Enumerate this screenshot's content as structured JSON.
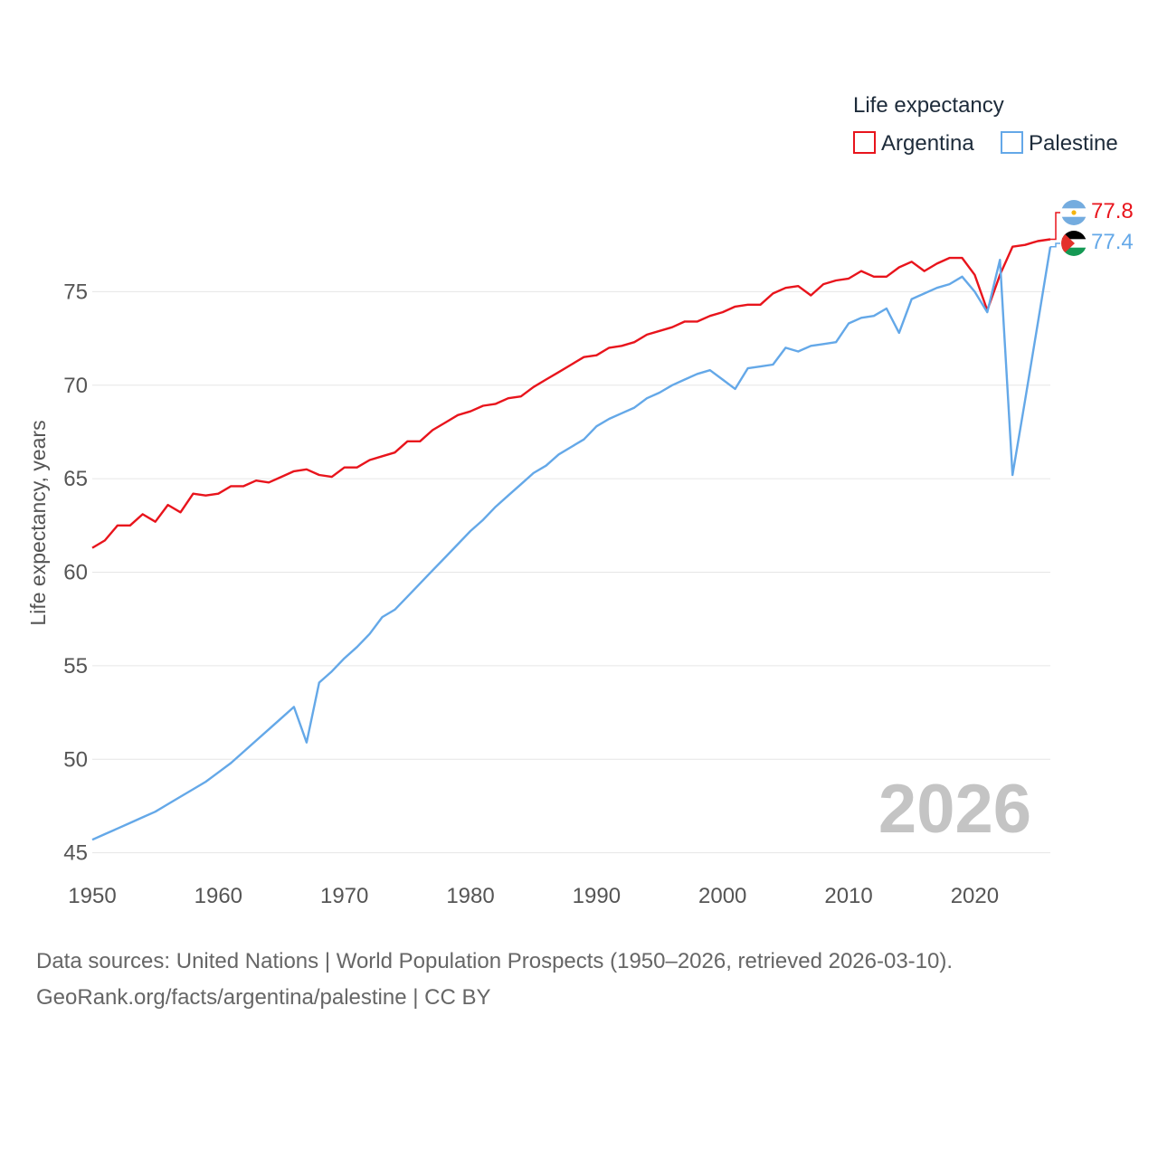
{
  "chart_data": {
    "type": "line",
    "title": "",
    "xlabel": "",
    "ylabel": "Life expectancy, years",
    "xlim": [
      1950,
      2026
    ],
    "ylim": [
      44.5,
      78.5
    ],
    "xticks": [
      1950,
      1960,
      1970,
      1980,
      1990,
      2000,
      2010,
      2020
    ],
    "yticks": [
      45,
      50,
      55,
      60,
      65,
      70,
      75
    ],
    "legend_title": "Life expectancy",
    "legend_position": "top-right",
    "year_watermark": "2026",
    "x": [
      1950,
      1951,
      1952,
      1953,
      1954,
      1955,
      1956,
      1957,
      1958,
      1959,
      1960,
      1961,
      1962,
      1963,
      1964,
      1965,
      1966,
      1967,
      1968,
      1969,
      1970,
      1971,
      1972,
      1973,
      1974,
      1975,
      1976,
      1977,
      1978,
      1979,
      1980,
      1981,
      1982,
      1983,
      1984,
      1985,
      1986,
      1987,
      1988,
      1989,
      1990,
      1991,
      1992,
      1993,
      1994,
      1995,
      1996,
      1997,
      1998,
      1999,
      2000,
      2001,
      2002,
      2003,
      2004,
      2005,
      2006,
      2007,
      2008,
      2009,
      2010,
      2011,
      2012,
      2013,
      2014,
      2015,
      2016,
      2017,
      2018,
      2019,
      2020,
      2021,
      2022,
      2023,
      2024,
      2025,
      2026
    ],
    "series": [
      {
        "name": "Argentina",
        "color": "#e8141c",
        "end_label": "77.8",
        "flag": "argentina-flag-icon",
        "values": [
          61.3,
          61.7,
          62.5,
          62.5,
          63.1,
          62.7,
          63.6,
          63.2,
          64.2,
          64.1,
          64.2,
          64.6,
          64.6,
          64.9,
          64.8,
          65.1,
          65.4,
          65.5,
          65.2,
          65.1,
          65.6,
          65.6,
          66.0,
          66.2,
          66.4,
          67.0,
          67.0,
          67.6,
          68.0,
          68.4,
          68.6,
          68.9,
          69.0,
          69.3,
          69.4,
          69.9,
          70.3,
          70.7,
          71.1,
          71.5,
          71.6,
          72.0,
          72.1,
          72.3,
          72.7,
          72.9,
          73.1,
          73.4,
          73.4,
          73.7,
          73.9,
          74.2,
          74.3,
          74.3,
          74.9,
          75.2,
          75.3,
          74.8,
          75.4,
          75.6,
          75.7,
          76.1,
          75.8,
          75.8,
          76.3,
          76.6,
          76.1,
          76.5,
          76.8,
          76.8,
          75.9,
          74.0,
          75.9,
          77.4,
          77.5,
          77.7,
          77.8
        ]
      },
      {
        "name": "Palestine",
        "color": "#64a8e8",
        "end_label": "77.4",
        "flag": "palestine-flag-icon",
        "values": [
          45.7,
          46.0,
          46.3,
          46.6,
          46.9,
          47.2,
          47.6,
          48.0,
          48.4,
          48.8,
          49.3,
          49.8,
          50.4,
          51.0,
          51.6,
          52.2,
          52.8,
          50.9,
          54.1,
          54.7,
          55.4,
          56.0,
          56.7,
          57.6,
          58.0,
          58.7,
          59.4,
          60.1,
          60.8,
          61.5,
          62.2,
          62.8,
          63.5,
          64.1,
          64.7,
          65.3,
          65.7,
          66.3,
          66.7,
          67.1,
          67.8,
          68.2,
          68.5,
          68.8,
          69.3,
          69.6,
          70.0,
          70.3,
          70.6,
          70.8,
          70.3,
          69.8,
          70.9,
          71.0,
          71.1,
          72.0,
          71.8,
          72.1,
          72.2,
          72.3,
          73.3,
          73.6,
          73.7,
          74.1,
          72.8,
          74.6,
          74.9,
          75.2,
          75.4,
          75.8,
          75.0,
          73.9,
          76.7,
          65.2,
          69.2,
          73.3,
          77.4
        ]
      }
    ]
  },
  "footer": {
    "source_line": "Data sources: United Nations | World Population Prospects (1950–2026, retrieved 2026-03-10).",
    "credit_line": "GeoRank.org/facts/argentina/palestine | CC BY"
  }
}
